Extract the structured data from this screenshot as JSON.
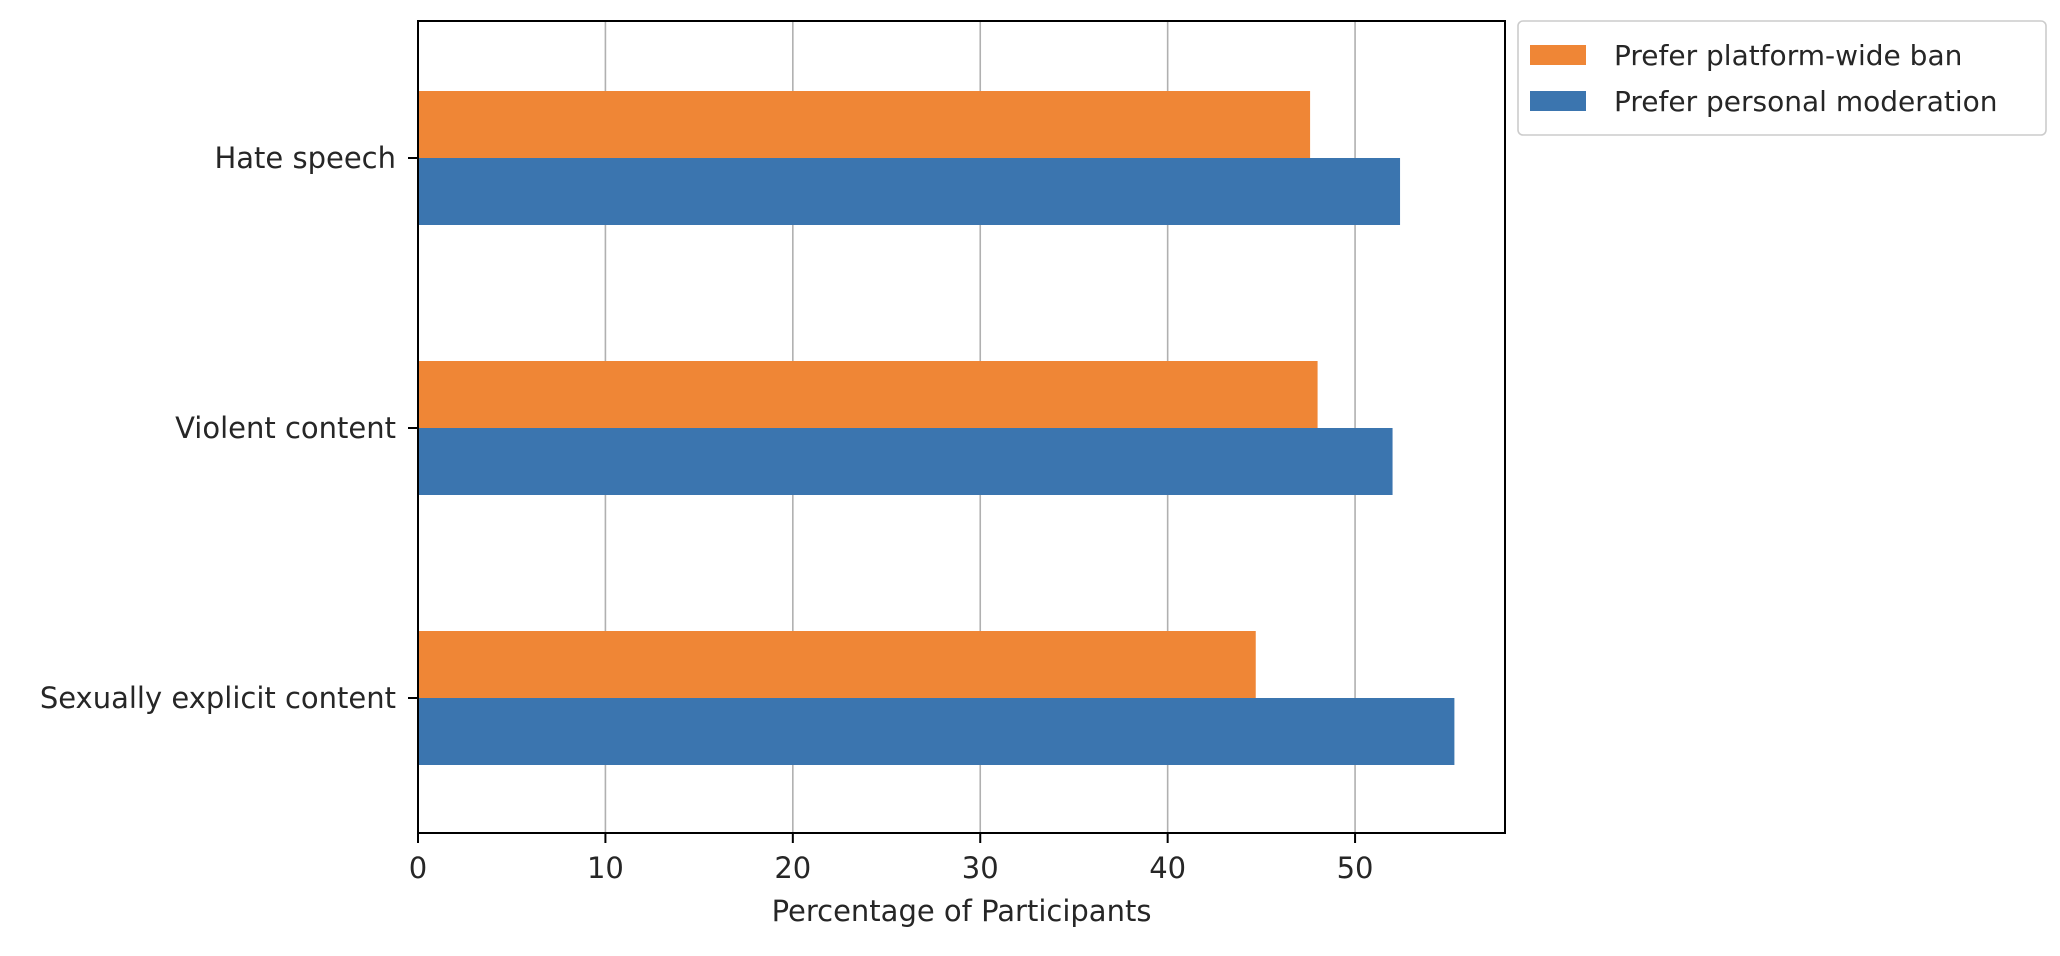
{
  "chart_data": {
    "type": "bar",
    "orientation": "horizontal",
    "title": "",
    "xlabel": "Percentage of Participants",
    "ylabel": "",
    "categories": [
      "Hate speech",
      "Violent content",
      "Sexually explicit content"
    ],
    "series": [
      {
        "name": "Prefer platform-wide ban",
        "color": "#ef8636",
        "values": [
          47.6,
          48.0,
          44.7
        ]
      },
      {
        "name": "Prefer personal moderation",
        "color": "#3b75af",
        "values": [
          52.4,
          52.0,
          55.3
        ]
      }
    ],
    "xlim": [
      0,
      58
    ],
    "xticks": [
      0,
      10,
      20,
      30,
      40,
      50
    ],
    "grid": "x",
    "legend": "outside-top-right"
  }
}
